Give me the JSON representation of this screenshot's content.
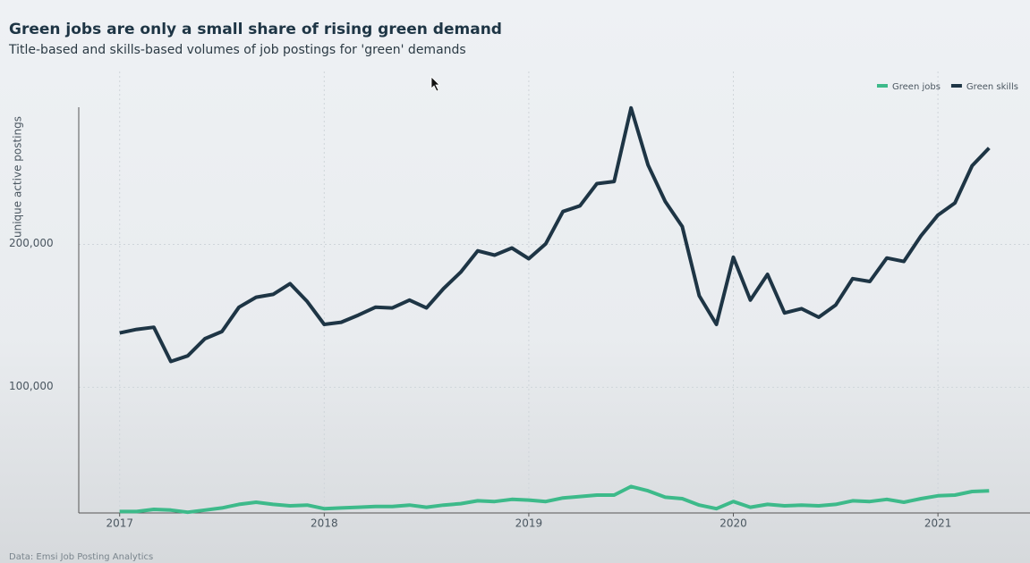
{
  "chart_data": {
    "type": "line",
    "title": "Green jobs are only a small share of rising green demand",
    "subtitle": "Title-based and skills-based volumes of job postings for 'green' demands",
    "y_label": "unique active postings",
    "source": "Data: Emsi Job Posting Analytics",
    "x": [
      2017,
      2017.083,
      2017.167,
      2017.25,
      2017.333,
      2017.417,
      2017.5,
      2017.583,
      2017.667,
      2017.75,
      2017.833,
      2017.917,
      2018,
      2018.083,
      2018.167,
      2018.25,
      2018.333,
      2018.417,
      2018.5,
      2018.583,
      2018.667,
      2018.75,
      2018.833,
      2018.917,
      2019,
      2019.083,
      2019.167,
      2019.25,
      2019.333,
      2019.417,
      2019.5,
      2019.583,
      2019.667,
      2019.75,
      2019.833,
      2019.917,
      2020,
      2020.083,
      2020.167,
      2020.25,
      2020.333,
      2020.417,
      2020.5,
      2020.583,
      2020.667,
      2020.75,
      2020.833,
      2020.917,
      2021,
      2021.083,
      2021.167,
      2021.25
    ],
    "series": [
      {
        "name": "Green jobs",
        "color": "#3dba8a",
        "values": [
          13000,
          13000,
          14500,
          14000,
          12500,
          14000,
          15500,
          18000,
          19500,
          18000,
          17000,
          17500,
          15000,
          15500,
          16000,
          16500,
          16500,
          17500,
          16000,
          17500,
          18500,
          20500,
          20000,
          21500,
          21000,
          20000,
          22500,
          23500,
          24500,
          24500,
          30500,
          27500,
          23000,
          22000,
          17500,
          15000,
          20000,
          16000,
          18000,
          17000,
          17500,
          17000,
          18000,
          20500,
          20000,
          21500,
          19500,
          22000,
          24000,
          24500,
          27000,
          27500
        ]
      },
      {
        "name": "Green skills",
        "color": "#1e3545",
        "values": [
          138000,
          140500,
          142000,
          118000,
          122000,
          134000,
          139000,
          156000,
          163000,
          165000,
          172500,
          160000,
          144000,
          145500,
          150500,
          156000,
          155500,
          161000,
          155500,
          169000,
          180500,
          195500,
          192500,
          197500,
          190000,
          200500,
          223000,
          227000,
          242500,
          244000,
          295500,
          255500,
          230000,
          212500,
          164000,
          144000,
          191000,
          161000,
          179000,
          152000,
          155000,
          149000,
          157500,
          176000,
          174000,
          190500,
          188000,
          206000,
          220500,
          229000,
          255000,
          267500
        ]
      }
    ],
    "xlim": [
      2016.8,
      2021.45
    ],
    "xticks": [
      2017,
      2018,
      2019,
      2020,
      2021
    ],
    "ylim": [
      12000,
      296000
    ],
    "yticks": [
      {
        "value": 100000,
        "label": "100,000"
      },
      {
        "value": 200000,
        "label": "200,000"
      }
    ],
    "grid": true,
    "legend": "top-right"
  }
}
